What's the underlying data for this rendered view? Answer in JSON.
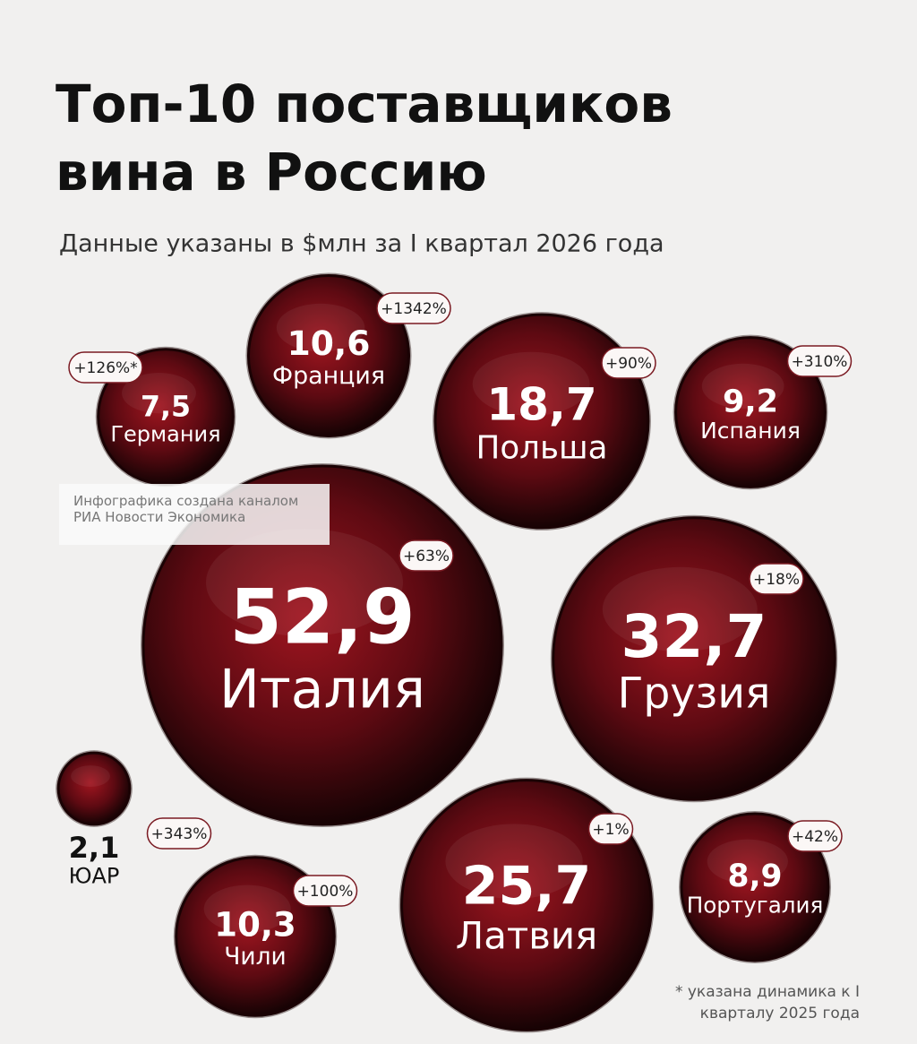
{
  "chart_data": {
    "type": "bubble",
    "title": "Топ-10 поставщиков вина в Россию",
    "subtitle": "Данные указаны в $млн за I квартал 2026 года",
    "categories": [
      "Германия",
      "Франция",
      "Польша",
      "Испания",
      "Италия",
      "Грузия",
      "ЮАР",
      "Чили",
      "Латвия",
      "Португалия"
    ],
    "values": [
      7.5,
      10.6,
      18.7,
      9.2,
      52.9,
      32.7,
      2.1,
      10.3,
      25.7,
      8.9
    ],
    "value_labels": [
      "7,5",
      "10,6",
      "18,7",
      "9,2",
      "52,9",
      "32,7",
      "2,1",
      "10,3",
      "25,7",
      "8,9"
    ],
    "changes": [
      126,
      1342,
      90,
      310,
      63,
      18,
      343,
      100,
      1,
      42
    ],
    "change_labels": [
      "+126%*",
      "+1342%",
      "+90%",
      "+310%",
      "+63%",
      "+18%",
      "+343%",
      "+100%",
      "+1%",
      "+42%"
    ],
    "footnote": "* указана динамика к I кварталу 2025 года",
    "watermark": "Инфографика создана каналом РИА Новости Экономика"
  }
}
